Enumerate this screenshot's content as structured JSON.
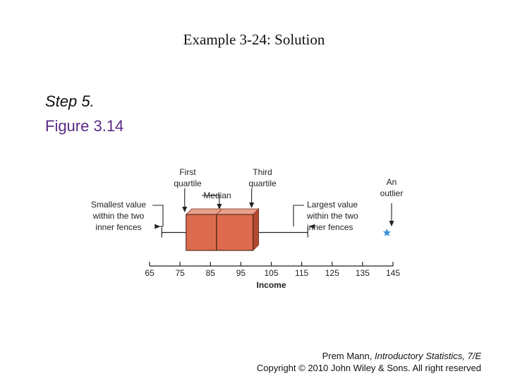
{
  "slide": {
    "title": "Example 3-24: Solution",
    "step": "Step 5.",
    "figure": "Figure 3.14"
  },
  "colors": {
    "box_front": "#dd6b4d",
    "box_top": "#e9a08a",
    "box_side": "#b14a31",
    "outlier": "#3a8fd6",
    "ink": "#222222"
  },
  "chart_data": {
    "type": "boxplot",
    "xlabel": "Income",
    "ticks": [
      65,
      75,
      85,
      95,
      105,
      115,
      125,
      135,
      145
    ],
    "tick_labels": [
      "65",
      "75",
      "85",
      "95",
      "105",
      "115",
      "125",
      "135",
      "145"
    ],
    "xlim": [
      65,
      145
    ],
    "whisker_low": 69,
    "q1": 77,
    "median": 87,
    "q3": 99,
    "whisker_high": 117,
    "outliers": [
      143
    ],
    "annotations": {
      "smallest": [
        "Smallest value",
        "within the two",
        "inner fences"
      ],
      "first_quartile": [
        "First",
        "quartile"
      ],
      "median": [
        "Median"
      ],
      "third_quartile": [
        "Third",
        "quartile"
      ],
      "largest": [
        "Largest value",
        "within the two",
        "inner fences"
      ],
      "outlier": [
        "An",
        "outlier"
      ]
    }
  },
  "footer": {
    "author": "Prem Mann, ",
    "book": "Introductory Statistics, 7/E",
    "copyright": "Copyright © 2010 John Wiley & Sons. All right reserved"
  }
}
